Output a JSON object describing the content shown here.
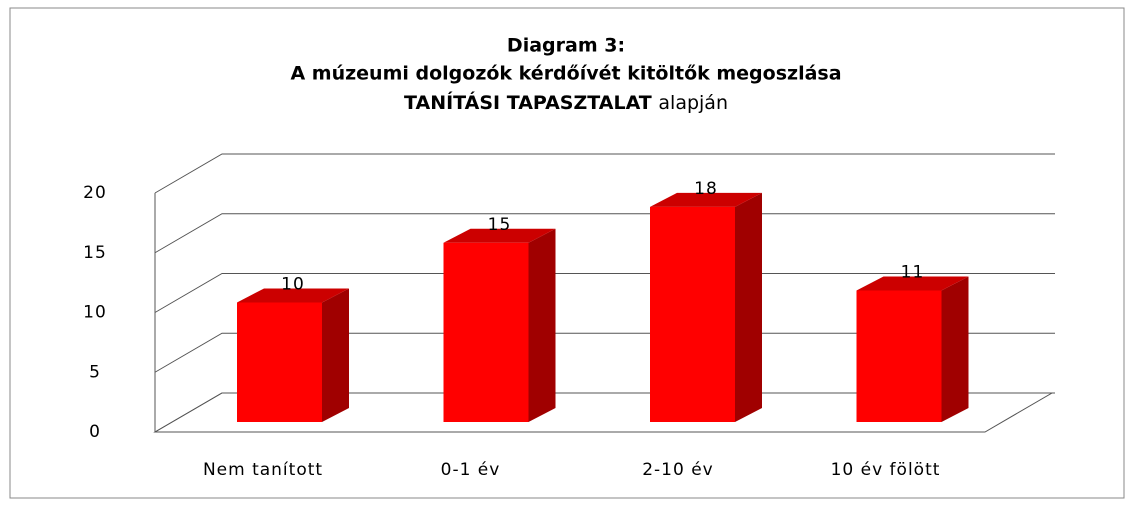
{
  "chart_data": {
    "type": "bar3d",
    "title": [
      "Diagram 3:",
      "A múzeumi dolgozók kérdőívét kitöltők megoszlása",
      "TANÍTÁSI TAPASZTALAT",
      "alapján"
    ],
    "categories": [
      "Nem tanított",
      "0-1 év",
      "2-10 év",
      "10 év fölött"
    ],
    "values": [
      10,
      15,
      18,
      11
    ],
    "color": "#ff0000",
    "ylim": [
      0,
      20
    ],
    "yticks": [
      0,
      5,
      10,
      15,
      20
    ],
    "grid": true
  }
}
